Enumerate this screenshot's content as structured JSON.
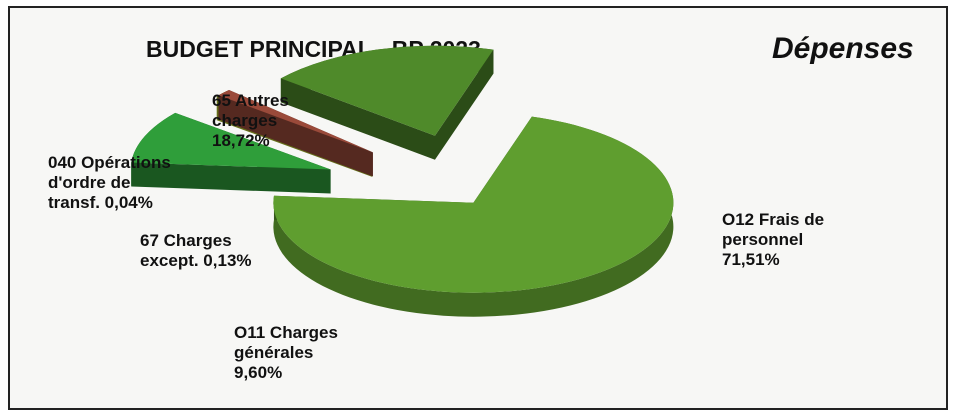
{
  "chart_data": {
    "type": "pie",
    "style": "3d-exploded",
    "title": "BUDGET PRINCIPAL - BP 2023",
    "subtitle": "Dépenses",
    "slices": [
      {
        "code": "O12",
        "label_lines": [
          "O12 Frais de",
          "personnel",
          "71,51%"
        ],
        "value": 71.51,
        "color": "#5f9e2f"
      },
      {
        "code": "O11",
        "label_lines": [
          "O11 Charges",
          "générales",
          "9,60%"
        ],
        "value": 9.6,
        "color": "#2f9e3a"
      },
      {
        "code": "67",
        "label_lines": [
          "67 Charges",
          "except. 0,13%"
        ],
        "value": 0.13,
        "color": "#b8c830"
      },
      {
        "code": "040",
        "label_lines": [
          "040 Opérations",
          "d'ordre de",
          "transf. 0,04%"
        ],
        "value": 0.04,
        "color": "#9a4a3a"
      },
      {
        "code": "65",
        "label_lines": [
          "65 Autres",
          "charges",
          "18,72%"
        ],
        "value": 18.72,
        "color": "#4f8a2a"
      }
    ]
  }
}
